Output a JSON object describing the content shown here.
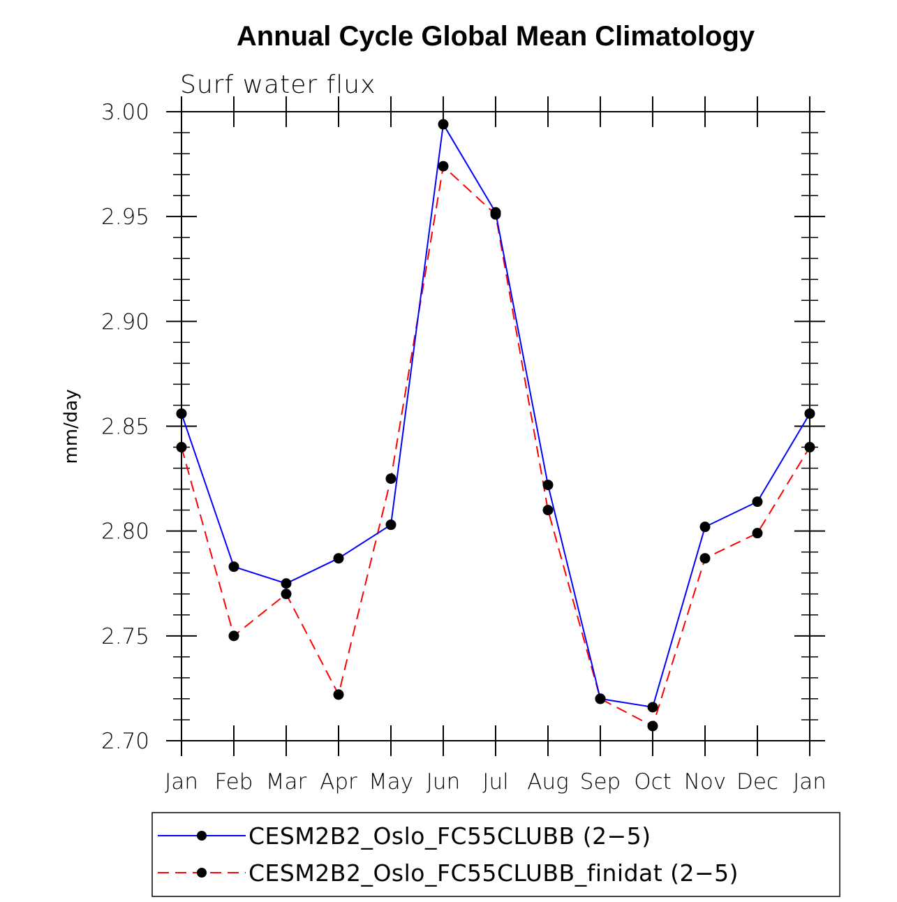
{
  "chart_data": {
    "type": "line",
    "title": "Annual Cycle Global Mean Climatology",
    "subtitle": "Surf water flux",
    "xlabel": "",
    "ylabel": "mm/day",
    "ylim": [
      2.7,
      3.0
    ],
    "yticks": [
      "2.70",
      "2.75",
      "2.80",
      "2.85",
      "2.90",
      "2.95",
      "3.00"
    ],
    "categories": [
      "Jan",
      "Feb",
      "Mar",
      "Apr",
      "May",
      "Jun",
      "Jul",
      "Aug",
      "Sep",
      "Oct",
      "Nov",
      "Dec",
      "Jan"
    ],
    "series": [
      {
        "name": "CESM2B2_Oslo_FC55CLUBB (2−5)",
        "color": "#0000ff",
        "dash": "solid",
        "values": [
          2.856,
          2.783,
          2.775,
          2.787,
          2.803,
          2.994,
          2.952,
          2.822,
          2.72,
          2.716,
          2.802,
          2.814,
          2.856
        ]
      },
      {
        "name": "CESM2B2_Oslo_FC55CLUBB_finidat (2−5)",
        "color": "#ff0000",
        "dash": "dashed",
        "values": [
          2.84,
          2.75,
          2.77,
          2.722,
          2.825,
          2.974,
          2.951,
          2.81,
          2.72,
          2.707,
          2.787,
          2.799,
          2.84
        ]
      }
    ],
    "legend_position": "bottom"
  }
}
